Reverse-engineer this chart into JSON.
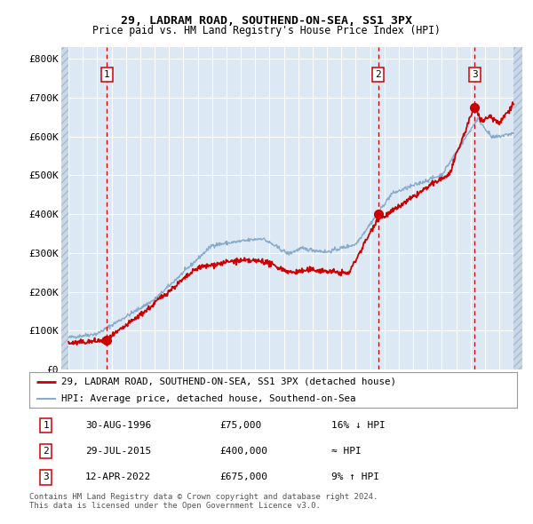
{
  "title": "29, LADRAM ROAD, SOUTHEND-ON-SEA, SS1 3PX",
  "subtitle": "Price paid vs. HM Land Registry's House Price Index (HPI)",
  "bg_color": "#dce9f5",
  "hatch_bg_color": "#c8d8e8",
  "grid_color": "#ffffff",
  "red_line_color": "#cc0000",
  "blue_line_color": "#88aacc",
  "sale_marker_color": "#cc0000",
  "vline_color": "#cc0000",
  "ylim": [
    0,
    830000
  ],
  "yticks": [
    0,
    100000,
    200000,
    300000,
    400000,
    500000,
    600000,
    700000,
    800000
  ],
  "ytick_labels": [
    "£0",
    "£100K",
    "£200K",
    "£300K",
    "£400K",
    "£500K",
    "£600K",
    "£700K",
    "£800K"
  ],
  "xmin": 1993.5,
  "xmax": 2025.6,
  "hatch_left_end": 1994.0,
  "hatch_right_start": 2025.0,
  "sales": [
    {
      "date_num": 1996.66,
      "price": 75000,
      "label": "1"
    },
    {
      "date_num": 2015.57,
      "price": 400000,
      "label": "2"
    },
    {
      "date_num": 2022.28,
      "price": 675000,
      "label": "3"
    }
  ],
  "legend_entries": [
    {
      "label": "29, LADRAM ROAD, SOUTHEND-ON-SEA, SS1 3PX (detached house)",
      "color": "#cc0000",
      "lw": 2
    },
    {
      "label": "HPI: Average price, detached house, Southend-on-Sea",
      "color": "#88aacc",
      "lw": 1.5
    }
  ],
  "table_rows": [
    {
      "num": "1",
      "date": "30-AUG-1996",
      "price": "£75,000",
      "hpi": "16% ↓ HPI"
    },
    {
      "num": "2",
      "date": "29-JUL-2015",
      "price": "£400,000",
      "hpi": "≈ HPI"
    },
    {
      "num": "3",
      "date": "12-APR-2022",
      "price": "£675,000",
      "hpi": "9% ↑ HPI"
    }
  ],
  "footer": "Contains HM Land Registry data © Crown copyright and database right 2024.\nThis data is licensed under the Open Government Licence v3.0."
}
